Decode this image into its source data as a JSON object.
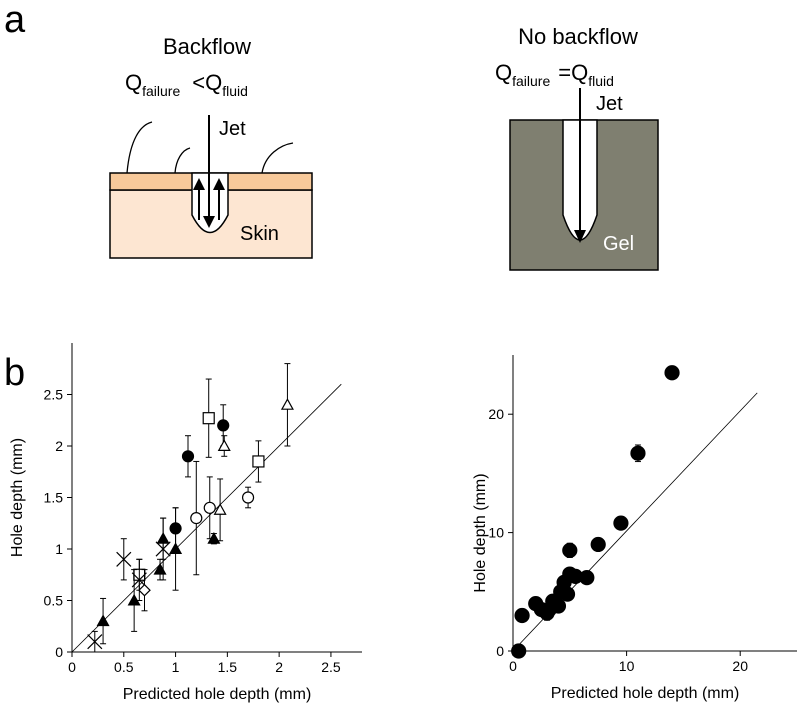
{
  "panel_labels": [
    "a",
    "b"
  ],
  "diagram": {
    "left": {
      "title": "Backflow",
      "q_left": "Q",
      "sub_left": "failure",
      "relation": "<",
      "q_right": "Q",
      "sub_right": "fluid",
      "jet": "Jet",
      "material": "Skin"
    },
    "right": {
      "title": "No backflow",
      "q_left": "Q",
      "sub_left": "failure",
      "relation": "=",
      "q_right": "Q",
      "sub_right": "fluid",
      "jet": "Jet",
      "material": "Gel"
    }
  },
  "chart_data": [
    {
      "type": "scatter",
      "xlabel": "Predicted hole depth (mm)",
      "ylabel": "Hole depth (mm)",
      "xlim": [
        0,
        2.8
      ],
      "ylim": [
        0,
        3
      ],
      "xticks": [
        0,
        0.5,
        1,
        1.5,
        2,
        2.5
      ],
      "yticks": [
        0,
        0.5,
        1,
        1.5,
        2,
        2.5
      ],
      "reference_line": {
        "x": [
          0,
          2.6
        ],
        "y": [
          0,
          2.6
        ]
      },
      "series": [
        {
          "marker": "circle",
          "filled": true,
          "color": "#000000",
          "x": [
            1.12,
            1.46,
            1.0
          ],
          "values": [
            1.9,
            2.2,
            1.2
          ],
          "errors": [
            0.2,
            0.2,
            0.2
          ]
        },
        {
          "marker": "square",
          "filled": false,
          "color": "#000000",
          "x": [
            1.32,
            1.8,
            0.65
          ],
          "values": [
            2.27,
            1.85,
            0.75
          ],
          "errors": [
            0.38,
            0.2,
            0.15
          ]
        },
        {
          "marker": "triangle",
          "filled": false,
          "color": "#000000",
          "x": [
            2.08,
            1.47,
            1.43
          ],
          "values": [
            2.4,
            2.0,
            1.38
          ],
          "errors": [
            0.4,
            0.1,
            0.3
          ]
        },
        {
          "marker": "triangle",
          "filled": true,
          "color": "#000000",
          "x": [
            0.3,
            0.6,
            0.85,
            0.88,
            1.0,
            1.37
          ],
          "values": [
            0.3,
            0.5,
            0.8,
            1.1,
            1.0,
            1.1
          ],
          "errors": [
            0.22,
            0.3,
            0.1,
            0.2,
            0.4,
            0.05
          ]
        },
        {
          "marker": "circle",
          "filled": false,
          "color": "#000000",
          "x": [
            1.2,
            1.33,
            1.7
          ],
          "values": [
            1.3,
            1.4,
            1.5
          ],
          "errors": [
            0.55,
            0.3,
            0.1
          ]
        },
        {
          "marker": "cross",
          "filled": false,
          "color": "#000000",
          "x": [
            0.5,
            0.22,
            0.88,
            0.65
          ],
          "values": [
            0.9,
            0.1,
            1.0,
            0.7
          ],
          "errors": [
            0.2,
            0.1,
            0.3,
            0.2
          ]
        },
        {
          "marker": "diamond",
          "filled": false,
          "color": "#000000",
          "x": [
            0.7
          ],
          "values": [
            0.6
          ],
          "errors": [
            0.2
          ]
        }
      ]
    },
    {
      "type": "scatter",
      "xlabel": "Predicted hole depth (mm)",
      "ylabel": "Hole depth (mm)",
      "xlim": [
        0,
        25
      ],
      "ylim": [
        0,
        25
      ],
      "xticks": [
        0,
        10,
        20
      ],
      "yticks": [
        0,
        10,
        20
      ],
      "reference_line": {
        "x": [
          0,
          21.5
        ],
        "y": [
          0,
          21.8
        ]
      },
      "series": [
        {
          "marker": "circle",
          "filled": true,
          "color": "#000000",
          "x": [
            0.5,
            0.8,
            2,
            2.5,
            3,
            3.2,
            3.5,
            4,
            4.2,
            4.5,
            4.8,
            5,
            5,
            5.5,
            6.5,
            7.5,
            9.5,
            11,
            14
          ],
          "values": [
            0,
            3,
            4,
            3.5,
            3.2,
            3.5,
            4.2,
            3.8,
            5,
            5.8,
            4.8,
            6.5,
            8.5,
            6.3,
            6.2,
            9,
            10.8,
            16.7,
            23.5
          ],
          "errors": [
            0,
            0.3,
            0.3,
            0.3,
            0.6,
            0.3,
            0.5,
            0.3,
            0.4,
            0.4,
            0.4,
            0.5,
            0.6,
            0.3,
            0.4,
            0.3,
            0.3,
            0.7,
            0.3
          ]
        }
      ]
    }
  ]
}
